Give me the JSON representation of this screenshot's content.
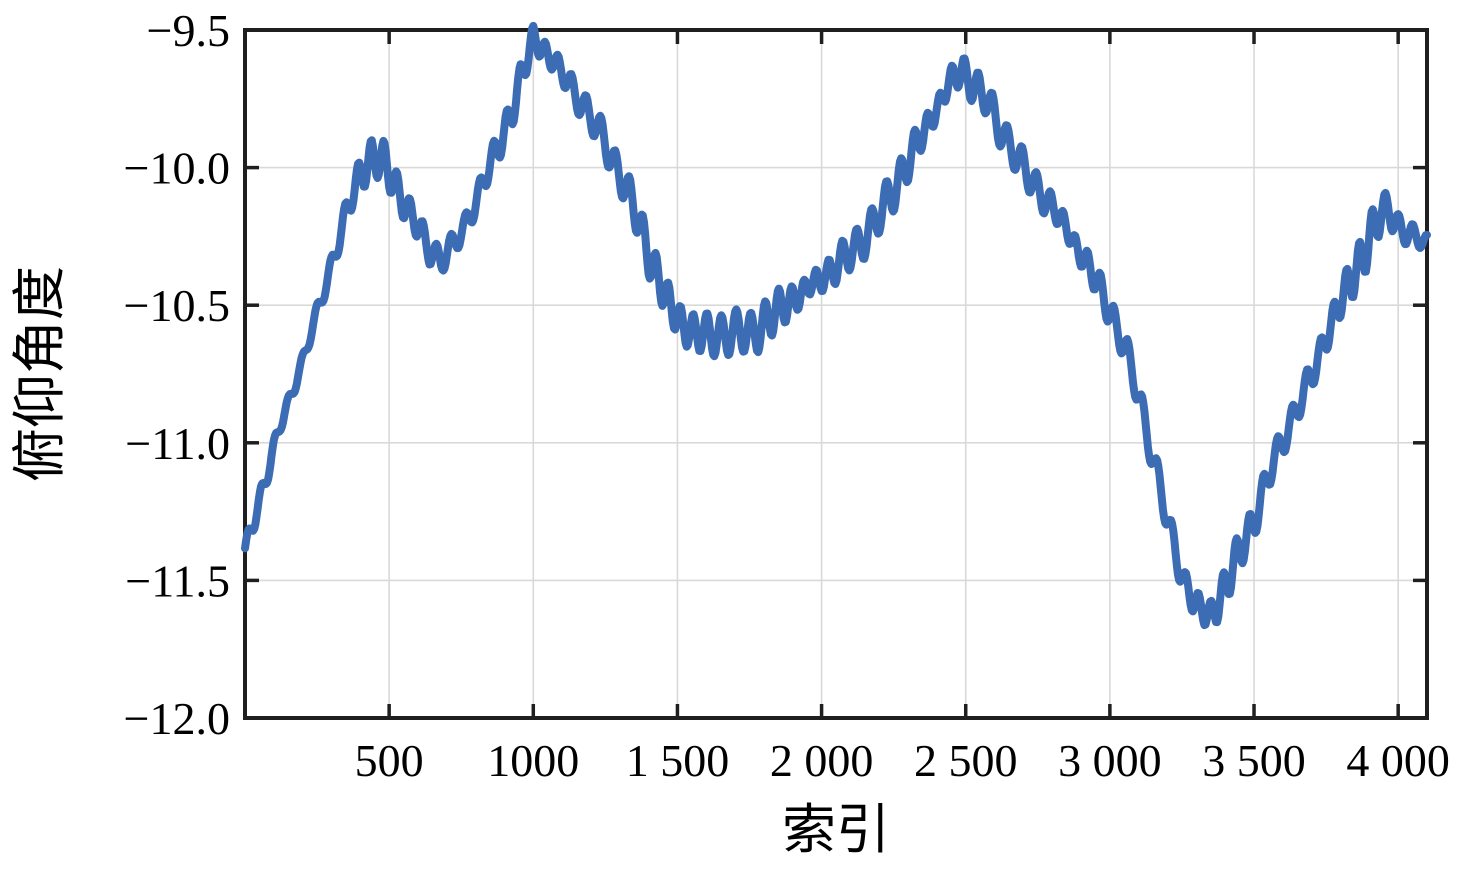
{
  "chart_data": {
    "type": "line",
    "title": "",
    "xlabel": "索引",
    "ylabel": "俯仰角度",
    "xlim": [
      0,
      4100
    ],
    "ylim": [
      -12.0,
      -9.5
    ],
    "grid": true,
    "legend": "none",
    "x_ticks": [
      500,
      1000,
      1500,
      2000,
      2500,
      3000,
      3500,
      4000
    ],
    "x_tick_labels": [
      "500",
      "1000",
      "1 500",
      "2 000",
      "2 500",
      "3 000",
      "3 500",
      "4 000"
    ],
    "y_ticks": [
      -12.0,
      -11.5,
      -11.0,
      -10.5,
      -10.0,
      -9.5
    ],
    "y_tick_labels": [
      "−12.0",
      "−11.5",
      "−11.0",
      "−10.5",
      "−10.0",
      "−9.5"
    ],
    "series": [
      {
        "name": "俯仰角度",
        "color": "#3b6cb4",
        "style": "dense-noisy-line",
        "oscillation": {
          "period": 47,
          "amplitude_points": [
            [
              0,
              0.02
            ],
            [
              150,
              0.03
            ],
            [
              300,
              0.05
            ],
            [
              400,
              0.065
            ],
            [
              500,
              0.055
            ],
            [
              650,
              0.065
            ],
            [
              800,
              0.05
            ],
            [
              950,
              0.045
            ],
            [
              1050,
              0.05
            ],
            [
              1200,
              0.06
            ],
            [
              1350,
              0.055
            ],
            [
              1500,
              0.075
            ],
            [
              1650,
              0.07
            ],
            [
              1800,
              0.065
            ],
            [
              1950,
              0.05
            ],
            [
              2100,
              0.055
            ],
            [
              2250,
              0.06
            ],
            [
              2400,
              0.05
            ],
            [
              2550,
              0.05
            ],
            [
              2700,
              0.05
            ],
            [
              2850,
              0.05
            ],
            [
              3000,
              0.04
            ],
            [
              3150,
              0.05
            ],
            [
              3300,
              0.065
            ],
            [
              3450,
              0.055
            ],
            [
              3600,
              0.06
            ],
            [
              3750,
              0.065
            ],
            [
              3900,
              0.07
            ],
            [
              4000,
              0.06
            ],
            [
              4100,
              0.045
            ]
          ]
        },
        "trend_points": [
          [
            0,
            -11.4
          ],
          [
            40,
            -11.24
          ],
          [
            80,
            -11.1
          ],
          [
            120,
            -10.95
          ],
          [
            160,
            -10.82
          ],
          [
            200,
            -10.7
          ],
          [
            240,
            -10.57
          ],
          [
            280,
            -10.42
          ],
          [
            320,
            -10.28
          ],
          [
            360,
            -10.14
          ],
          [
            400,
            -10.02
          ],
          [
            440,
            -9.96
          ],
          [
            480,
            -9.98
          ],
          [
            520,
            -10.06
          ],
          [
            560,
            -10.14
          ],
          [
            600,
            -10.22
          ],
          [
            640,
            -10.3
          ],
          [
            680,
            -10.33
          ],
          [
            720,
            -10.29
          ],
          [
            760,
            -10.22
          ],
          [
            800,
            -10.12
          ],
          [
            840,
            -10.02
          ],
          [
            880,
            -9.92
          ],
          [
            920,
            -9.81
          ],
          [
            960,
            -9.67
          ],
          [
            1000,
            -9.53
          ],
          [
            1040,
            -9.57
          ],
          [
            1080,
            -9.63
          ],
          [
            1120,
            -9.69
          ],
          [
            1160,
            -9.75
          ],
          [
            1200,
            -9.82
          ],
          [
            1240,
            -9.89
          ],
          [
            1280,
            -9.98
          ],
          [
            1320,
            -10.07
          ],
          [
            1360,
            -10.18
          ],
          [
            1400,
            -10.31
          ],
          [
            1440,
            -10.42
          ],
          [
            1480,
            -10.52
          ],
          [
            1520,
            -10.57
          ],
          [
            1560,
            -10.6
          ],
          [
            1600,
            -10.61
          ],
          [
            1700,
            -10.6
          ],
          [
            1760,
            -10.6
          ],
          [
            1820,
            -10.55
          ],
          [
            1880,
            -10.49
          ],
          [
            1940,
            -10.45
          ],
          [
            2000,
            -10.4
          ],
          [
            2060,
            -10.35
          ],
          [
            2120,
            -10.29
          ],
          [
            2180,
            -10.21
          ],
          [
            2240,
            -10.1
          ],
          [
            2300,
            -9.98
          ],
          [
            2360,
            -9.86
          ],
          [
            2420,
            -9.74
          ],
          [
            2460,
            -9.67
          ],
          [
            2490,
            -9.65
          ],
          [
            2530,
            -9.7
          ],
          [
            2570,
            -9.75
          ],
          [
            2610,
            -9.84
          ],
          [
            2660,
            -9.93
          ],
          [
            2710,
            -10.02
          ],
          [
            2760,
            -10.09
          ],
          [
            2810,
            -10.16
          ],
          [
            2860,
            -10.24
          ],
          [
            2910,
            -10.33
          ],
          [
            2960,
            -10.43
          ],
          [
            3010,
            -10.54
          ],
          [
            3060,
            -10.68
          ],
          [
            3110,
            -10.87
          ],
          [
            3160,
            -11.1
          ],
          [
            3210,
            -11.33
          ],
          [
            3260,
            -11.51
          ],
          [
            3310,
            -11.61
          ],
          [
            3350,
            -11.63
          ],
          [
            3400,
            -11.52
          ],
          [
            3450,
            -11.4
          ],
          [
            3500,
            -11.28
          ],
          [
            3550,
            -11.12
          ],
          [
            3600,
            -10.99
          ],
          [
            3650,
            -10.87
          ],
          [
            3700,
            -10.76
          ],
          [
            3750,
            -10.61
          ],
          [
            3800,
            -10.49
          ],
          [
            3850,
            -10.38
          ],
          [
            3900,
            -10.26
          ],
          [
            3940,
            -10.17
          ],
          [
            3970,
            -10.15
          ],
          [
            4000,
            -10.21
          ],
          [
            4040,
            -10.25
          ],
          [
            4100,
            -10.27
          ]
        ]
      }
    ]
  },
  "colors": {
    "line": "#3b6cb4",
    "grid": "#d9d9d9",
    "spine": "#1f1f1f",
    "background": "#ffffff",
    "text": "#000000"
  }
}
